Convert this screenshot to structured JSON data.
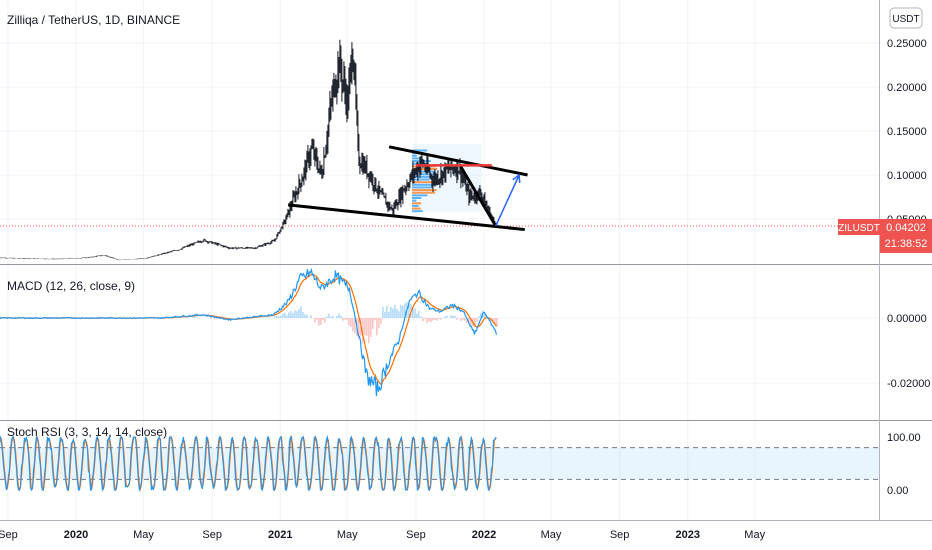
{
  "header": {
    "title": "Zilliqa / TetherUS, 1D, BINANCE",
    "currency_button": "USDT"
  },
  "price_tag": {
    "symbol": "ZILUSDT",
    "price": "0.04202",
    "countdown": "21:38:52"
  },
  "colors": {
    "candle": "#131722",
    "macd": "#2196f3",
    "signal": "#ff6d00",
    "hist_pos": "#26a69a",
    "hist_neg": "#ef5350",
    "stoch_k": "#2196f3",
    "stoch_d": "#ff6d00",
    "trend": "#000000",
    "projection": "#2962ff",
    "price_line": "#ef5350",
    "resistance": "#e53935"
  },
  "chart_data": [
    {
      "type": "candlestick",
      "title": "Zilliqa / TetherUS, 1D, BINANCE",
      "y_ticks": [
        "0.25000",
        "0.20000",
        "0.15000",
        "0.10000",
        "0.05000"
      ],
      "y_tick_values": [
        0.25,
        0.2,
        0.15,
        0.1,
        0.05
      ],
      "last_price": 0.04202,
      "x_ticks": [
        "Sep",
        "2020",
        "May",
        "Sep",
        "2021",
        "May",
        "Sep",
        "2022",
        "May",
        "Sep",
        "2023",
        "May"
      ],
      "x_tick_dates": [
        "2019-09-01",
        "2020-01-01",
        "2020-05-01",
        "2020-09-01",
        "2021-01-01",
        "2021-05-01",
        "2021-09-01",
        "2022-01-01",
        "2022-05-01",
        "2022-09-01",
        "2023-01-01",
        "2023-05-01"
      ],
      "series_points": [
        [
          "2019-08-15",
          0.006
        ],
        [
          "2019-10-01",
          0.005
        ],
        [
          "2019-12-01",
          0.0045
        ],
        [
          "2020-01-20",
          0.006
        ],
        [
          "2020-02-20",
          0.009
        ],
        [
          "2020-03-15",
          0.0035
        ],
        [
          "2020-05-01",
          0.005
        ],
        [
          "2020-07-01",
          0.015
        ],
        [
          "2020-08-15",
          0.026
        ],
        [
          "2020-10-01",
          0.017
        ],
        [
          "2020-11-15",
          0.017
        ],
        [
          "2020-12-20",
          0.025
        ],
        [
          "2021-01-10",
          0.05
        ],
        [
          "2021-01-25",
          0.075
        ],
        [
          "2021-02-10",
          0.1
        ],
        [
          "2021-02-25",
          0.13
        ],
        [
          "2021-03-15",
          0.1
        ],
        [
          "2021-04-01",
          0.18
        ],
        [
          "2021-04-15",
          0.23
        ],
        [
          "2021-05-01",
          0.18
        ],
        [
          "2021-05-10",
          0.25
        ],
        [
          "2021-05-20",
          0.12
        ],
        [
          "2021-06-10",
          0.1
        ],
        [
          "2021-07-01",
          0.075
        ],
        [
          "2021-07-20",
          0.06
        ],
        [
          "2021-08-10",
          0.085
        ],
        [
          "2021-08-25",
          0.1
        ],
        [
          "2021-09-10",
          0.115
        ],
        [
          "2021-10-01",
          0.095
        ],
        [
          "2021-10-25",
          0.105
        ],
        [
          "2021-11-15",
          0.11
        ],
        [
          "2021-12-05",
          0.075
        ],
        [
          "2021-12-25",
          0.08
        ],
        [
          "2022-01-15",
          0.05
        ],
        [
          "2022-01-25",
          0.042
        ]
      ],
      "trend_lines": [
        {
          "from": [
            "2021-01-15",
            0.066
          ],
          "to": [
            "2022-03-15",
            0.038
          ]
        },
        {
          "from": [
            "2021-07-15",
            0.132
          ],
          "to": [
            "2022-03-20",
            0.1
          ]
        },
        {
          "from": [
            "2021-11-20",
            0.11
          ],
          "to": [
            "2022-01-22",
            0.042
          ]
        }
      ],
      "projection": {
        "from": [
          "2022-01-22",
          0.042
        ],
        "to": [
          "2022-03-05",
          0.1
        ]
      },
      "resistance": {
        "from": [
          "2021-09-01",
          0.111
        ],
        "to": [
          "2022-01-15",
          0.111
        ]
      }
    },
    {
      "type": "line",
      "title": "MACD (12, 26, close, 9)",
      "y_ticks": [
        "0.00000",
        "-0.02000"
      ],
      "y_tick_values": [
        0.0,
        -0.02
      ],
      "macd_points": [
        [
          "2019-08-15",
          0.0
        ],
        [
          "2020-06-01",
          0.0
        ],
        [
          "2020-08-15",
          0.001
        ],
        [
          "2020-10-01",
          -0.0005
        ],
        [
          "2020-12-20",
          0.001
        ],
        [
          "2021-01-15",
          0.005
        ],
        [
          "2021-02-05",
          0.012
        ],
        [
          "2021-02-25",
          0.014
        ],
        [
          "2021-03-15",
          0.009
        ],
        [
          "2021-04-10",
          0.013
        ],
        [
          "2021-05-05",
          0.009
        ],
        [
          "2021-05-20",
          -0.004
        ],
        [
          "2021-06-05",
          -0.018
        ],
        [
          "2021-06-25",
          -0.022
        ],
        [
          "2021-07-15",
          -0.013
        ],
        [
          "2021-08-01",
          -0.007
        ],
        [
          "2021-08-20",
          0.005
        ],
        [
          "2021-09-05",
          0.008
        ],
        [
          "2021-09-25",
          0.003
        ],
        [
          "2021-10-15",
          0.002
        ],
        [
          "2021-11-05",
          0.004
        ],
        [
          "2021-11-25",
          0.002
        ],
        [
          "2021-12-15",
          -0.005
        ],
        [
          "2022-01-01",
          0.002
        ],
        [
          "2022-01-25",
          -0.005
        ]
      ]
    },
    {
      "type": "line",
      "title": "Stoch RSI (3, 3, 14, 14, close)",
      "y_ticks": [
        "100.00",
        "0.00"
      ],
      "y_tick_values": [
        100,
        0
      ],
      "band": [
        20,
        80
      ]
    }
  ]
}
